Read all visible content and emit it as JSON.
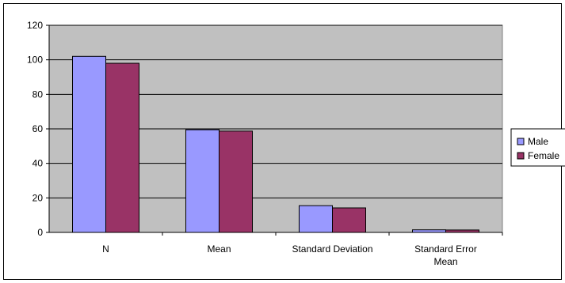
{
  "chart_data": {
    "type": "bar",
    "categories": [
      "N",
      "Mean",
      "Standard Deviation",
      [
        "Standard Error",
        "Mean"
      ]
    ],
    "series": [
      {
        "name": "Male",
        "values": [
          102,
          59.5,
          15.5,
          1.5
        ],
        "color": "#9999ff"
      },
      {
        "name": "Female",
        "values": [
          98,
          58.7,
          14.2,
          1.4
        ],
        "color": "#993366"
      }
    ],
    "ylim": [
      0,
      120
    ],
    "yticks": [
      0,
      20,
      40,
      60,
      80,
      100,
      120
    ],
    "title": "",
    "xlabel": "",
    "ylabel": "",
    "plot_background": "#c0c0c0",
    "grid": true,
    "legend_position": "right"
  }
}
